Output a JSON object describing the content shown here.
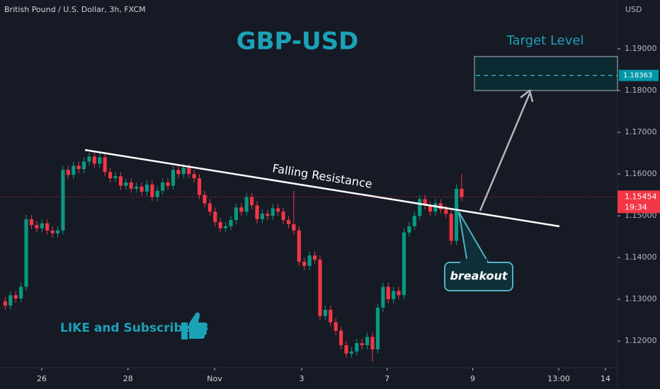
{
  "chart_data": {
    "type": "candlestick",
    "header": "British Pound / U.S. Dollar, 3h, FXCM",
    "title": "GBP-USD",
    "currency": "USD",
    "annotations": {
      "target": "Target Level",
      "resistance": "Falling Resistance",
      "breakout": "breakout",
      "cta": "LIKE and Subscribe"
    },
    "target_price": {
      "value": 1.18363,
      "label": "1.18363"
    },
    "last_price": {
      "value": 1.15454,
      "label": "1.15454"
    },
    "countdown": "19:34",
    "up_color": "#089981",
    "down_color": "#f23645",
    "open": [
      1.1295,
      1.1285,
      1.131,
      1.1302,
      1.133,
      1.1492,
      1.1478,
      1.147,
      1.1482,
      1.1465,
      1.1458,
      1.1465,
      1.161,
      1.1598,
      1.162,
      1.1612,
      1.163,
      1.1642,
      1.1625,
      1.164,
      1.1605,
      1.159,
      1.1595,
      1.1572,
      1.158,
      1.1565,
      1.157,
      1.1558,
      1.1575,
      1.1545,
      1.156,
      1.158,
      1.1572,
      1.161,
      1.16,
      1.1615,
      1.16,
      1.159,
      1.155,
      1.153,
      1.151,
      1.1485,
      1.147,
      1.1475,
      1.149,
      1.152,
      1.151,
      1.1545,
      1.1525,
      1.1492,
      1.1505,
      1.15,
      1.1518,
      1.151,
      1.149,
      1.148,
      1.1465,
      1.139,
      1.138,
      1.1405,
      1.1395,
      1.126,
      1.1275,
      1.1245,
      1.1225,
      1.119,
      1.117,
      1.1175,
      1.1195,
      1.119,
      1.121,
      1.118,
      1.128,
      1.133,
      1.13,
      1.132,
      1.131,
      1.146,
      1.1475,
      1.15,
      1.154,
      1.1525,
      1.151,
      1.153,
      1.1515,
      1.1505,
      1.144,
      1.1565
    ],
    "high": [
      1.1305,
      1.132,
      1.132,
      1.134,
      1.1502,
      1.1502,
      1.1488,
      1.1492,
      1.1492,
      1.1475,
      1.1475,
      1.162,
      1.162,
      1.163,
      1.163,
      1.164,
      1.1652,
      1.1652,
      1.165,
      1.165,
      1.1615,
      1.1605,
      1.1605,
      1.159,
      1.159,
      1.158,
      1.158,
      1.1585,
      1.1585,
      1.157,
      1.159,
      1.159,
      1.162,
      1.162,
      1.1625,
      1.1625,
      1.161,
      1.16,
      1.156,
      1.154,
      1.152,
      1.1495,
      1.1485,
      1.15,
      1.153,
      1.153,
      1.1555,
      1.1555,
      1.1535,
      1.1515,
      1.1515,
      1.1528,
      1.1528,
      1.152,
      1.15,
      1.156,
      1.1475,
      1.14,
      1.1415,
      1.1415,
      1.1405,
      1.1285,
      1.1285,
      1.1255,
      1.1235,
      1.12,
      1.1185,
      1.1205,
      1.1205,
      1.122,
      1.122,
      1.129,
      1.134,
      1.134,
      1.133,
      1.133,
      1.147,
      1.1485,
      1.151,
      1.155,
      1.155,
      1.1535,
      1.154,
      1.154,
      1.1525,
      1.1515,
      1.1575,
      1.16
    ],
    "low": [
      1.1275,
      1.1275,
      1.1292,
      1.1292,
      1.132,
      1.1468,
      1.146,
      1.146,
      1.1455,
      1.1448,
      1.1448,
      1.1455,
      1.1588,
      1.1588,
      1.1602,
      1.1602,
      1.162,
      1.1615,
      1.1615,
      1.1595,
      1.158,
      1.158,
      1.1562,
      1.1562,
      1.1555,
      1.1555,
      1.1548,
      1.1548,
      1.1535,
      1.1535,
      1.155,
      1.1562,
      1.1562,
      1.159,
      1.159,
      1.159,
      1.158,
      1.154,
      1.152,
      1.15,
      1.1475,
      1.146,
      1.146,
      1.1465,
      1.148,
      1.15,
      1.15,
      1.1515,
      1.1482,
      1.1482,
      1.149,
      1.149,
      1.15,
      1.148,
      1.147,
      1.1455,
      1.138,
      1.137,
      1.137,
      1.1385,
      1.125,
      1.125,
      1.1235,
      1.1215,
      1.118,
      1.116,
      1.116,
      1.1165,
      1.118,
      1.118,
      1.115,
      1.117,
      1.127,
      1.129,
      1.129,
      1.13,
      1.13,
      1.145,
      1.1465,
      1.149,
      1.1515,
      1.15,
      1.15,
      1.1505,
      1.1495,
      1.143,
      1.143,
      1.1535
    ],
    "close": [
      1.1285,
      1.131,
      1.1302,
      1.133,
      1.1492,
      1.1478,
      1.147,
      1.1482,
      1.1465,
      1.1458,
      1.1465,
      1.161,
      1.1598,
      1.162,
      1.1612,
      1.163,
      1.1642,
      1.1625,
      1.164,
      1.1605,
      1.159,
      1.1595,
      1.1572,
      1.158,
      1.1565,
      1.157,
      1.1558,
      1.1575,
      1.1545,
      1.156,
      1.158,
      1.1572,
      1.161,
      1.16,
      1.1615,
      1.16,
      1.159,
      1.155,
      1.153,
      1.151,
      1.1485,
      1.147,
      1.1475,
      1.149,
      1.152,
      1.151,
      1.1545,
      1.1525,
      1.1492,
      1.1505,
      1.15,
      1.1518,
      1.151,
      1.149,
      1.148,
      1.1465,
      1.139,
      1.138,
      1.1405,
      1.1395,
      1.126,
      1.1275,
      1.1245,
      1.1225,
      1.119,
      1.117,
      1.1175,
      1.1195,
      1.119,
      1.121,
      1.118,
      1.128,
      1.133,
      1.13,
      1.132,
      1.131,
      1.146,
      1.1475,
      1.15,
      1.154,
      1.1525,
      1.151,
      1.153,
      1.1515,
      1.1505,
      1.144,
      1.1565,
      1.1545
    ],
    "xlim": [
      -1,
      116.7
    ],
    "xticks": [
      {
        "value": 6.96,
        "label": "26"
      },
      {
        "value": 23.4,
        "label": "28"
      },
      {
        "value": 39.9,
        "label": "Nov"
      },
      {
        "value": 56.5,
        "label": "3"
      },
      {
        "value": 72.8,
        "label": "7"
      },
      {
        "value": 89.1,
        "label": "9"
      },
      {
        "value": 105.5,
        "label": "13:00"
      },
      {
        "value": 114.4,
        "label": "14"
      }
    ],
    "ylim": [
      1.1136,
      1.2017
    ],
    "yticks": [
      {
        "value": 1.12,
        "label": "1.12000"
      },
      {
        "value": 1.13,
        "label": "1.13000"
      },
      {
        "value": 1.14,
        "label": "1.14000"
      },
      {
        "value": 1.15,
        "label": "1.15000"
      },
      {
        "value": 1.16,
        "label": "1.16000"
      },
      {
        "value": 1.17,
        "label": "1.17000"
      },
      {
        "value": 1.18,
        "label": "1.18000"
      },
      {
        "value": 1.19,
        "label": "1.19000"
      }
    ]
  }
}
